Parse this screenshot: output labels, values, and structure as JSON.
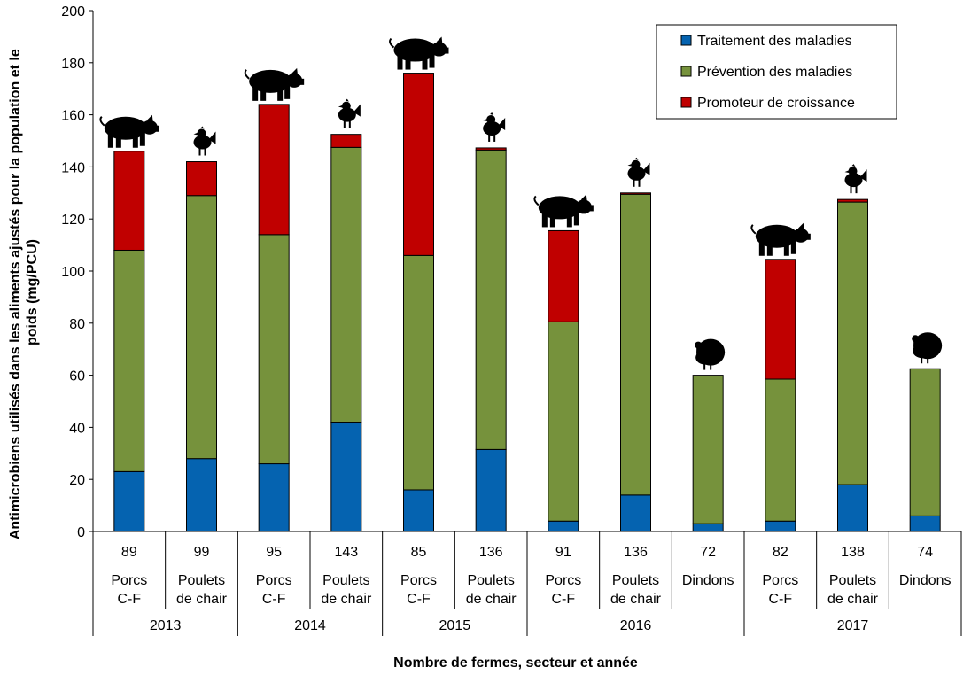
{
  "chart_data": {
    "type": "bar",
    "stacked": true,
    "title": "",
    "ylabel": "Antimicrobiens utilisés dans les aliments ajustés pour la population et le poids (mg/PCU)",
    "ylabel_lines": [
      "Antimicrobiens utilisés dans les aliments ajustés pour la population et le",
      "poids (mg/PCU)"
    ],
    "xlabel": "Nombre de fermes, secteur et année",
    "ylim": [
      0,
      200
    ],
    "yticks": [
      0,
      20,
      40,
      60,
      80,
      100,
      120,
      140,
      160,
      180,
      200
    ],
    "legend_position": "top-right",
    "categories": [
      {
        "farms": "89",
        "sector_lines": [
          "Porcs",
          "C-F"
        ],
        "animal": "pig"
      },
      {
        "farms": "99",
        "sector_lines": [
          "Poulets",
          "de chair"
        ],
        "animal": "chicken"
      },
      {
        "farms": "95",
        "sector_lines": [
          "Porcs",
          "C-F"
        ],
        "animal": "pig"
      },
      {
        "farms": "143",
        "sector_lines": [
          "Poulets",
          "de chair"
        ],
        "animal": "chicken"
      },
      {
        "farms": "85",
        "sector_lines": [
          "Porcs",
          "C-F"
        ],
        "animal": "pig"
      },
      {
        "farms": "136",
        "sector_lines": [
          "Poulets",
          "de chair"
        ],
        "animal": "chicken"
      },
      {
        "farms": "91",
        "sector_lines": [
          "Porcs",
          "C-F"
        ],
        "animal": "pig"
      },
      {
        "farms": "136",
        "sector_lines": [
          "Poulets",
          "de chair"
        ],
        "animal": "chicken"
      },
      {
        "farms": "72",
        "sector_lines": [
          "Dindons"
        ],
        "animal": "turkey"
      },
      {
        "farms": "82",
        "sector_lines": [
          "Porcs",
          "C-F"
        ],
        "animal": "pig"
      },
      {
        "farms": "138",
        "sector_lines": [
          "Poulets",
          "de chair"
        ],
        "animal": "chicken"
      },
      {
        "farms": "74",
        "sector_lines": [
          "Dindons"
        ],
        "animal": "turkey"
      }
    ],
    "years": [
      {
        "label": "2013",
        "count": 2
      },
      {
        "label": "2014",
        "count": 2
      },
      {
        "label": "2015",
        "count": 2
      },
      {
        "label": "2016",
        "count": 3
      },
      {
        "label": "2017",
        "count": 3
      }
    ],
    "series": [
      {
        "name": "Traitement des maladies",
        "color": "#0563b0",
        "values": [
          23,
          28,
          26,
          42,
          16,
          31.5,
          4,
          14,
          3,
          4,
          18,
          6
        ]
      },
      {
        "name": "Prévention des maladies",
        "color": "#76923c",
        "values": [
          85,
          101,
          88,
          105.5,
          90,
          115,
          76.5,
          115.5,
          57,
          54.5,
          108.5,
          56.5
        ]
      },
      {
        "name": "Promoteur de croissance",
        "color": "#c00000",
        "values": [
          38,
          13,
          50,
          5,
          70,
          0.8,
          35,
          0.5,
          0,
          46,
          1,
          0
        ]
      }
    ]
  }
}
